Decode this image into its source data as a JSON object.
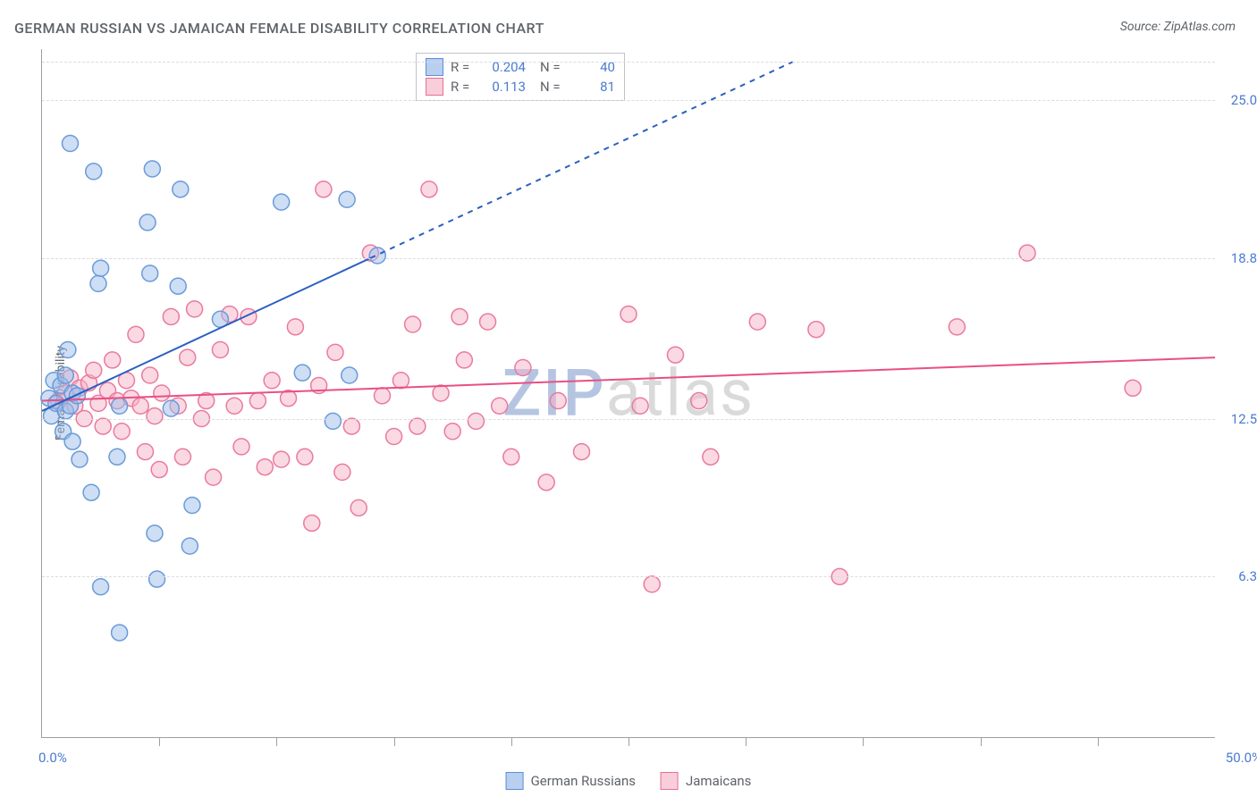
{
  "title": "GERMAN RUSSIAN VS JAMAICAN FEMALE DISABILITY CORRELATION CHART",
  "source": "Source: ZipAtlas.com",
  "watermark_zip": "ZIP",
  "watermark_atlas": "atlas",
  "ylabel": "Female Disability",
  "chart": {
    "type": "scatter",
    "xlim": [
      0,
      50
    ],
    "ylim": [
      0,
      27
    ],
    "x_tick_positions": [
      5,
      10,
      15,
      20,
      25,
      30,
      35,
      40,
      45
    ],
    "x_label_min": "0.0%",
    "x_label_max": "50.0%",
    "y_gridlines": [
      6.3,
      12.5,
      18.8,
      25.0,
      26.5
    ],
    "y_tick_labels": [
      "6.3%",
      "12.5%",
      "18.8%",
      "25.0%"
    ],
    "y_tick_values": [
      6.3,
      12.5,
      18.8,
      25.0
    ],
    "background_color": "#ffffff",
    "grid_color": "#dadce0",
    "axis_color": "#9aa0a6",
    "text_color": "#5f6368",
    "value_color": "#4a7bd0",
    "marker_radius": 9,
    "marker_stroke_width": 1.5,
    "series": [
      {
        "name": "German Russians",
        "fill": "rgba(155,190,235,0.5)",
        "stroke": "#6a9bd8",
        "r_value": "0.204",
        "n_value": "40",
        "trend": {
          "x1": 0,
          "y1": 12.8,
          "x2": 14,
          "y2": 18.8,
          "solid_until_x": 14,
          "dash_to_x": 32,
          "dash_to_y": 26.5,
          "stroke": "#2b5fc1",
          "width": 2
        },
        "points": [
          [
            0.3,
            13.3
          ],
          [
            0.4,
            12.6
          ],
          [
            0.5,
            14.0
          ],
          [
            0.6,
            13.1
          ],
          [
            0.8,
            13.8
          ],
          [
            0.9,
            12.0
          ],
          [
            1.0,
            14.2
          ],
          [
            1.0,
            12.8
          ],
          [
            1.1,
            15.2
          ],
          [
            1.2,
            13.0
          ],
          [
            1.3,
            11.6
          ],
          [
            1.3,
            13.5
          ],
          [
            1.5,
            13.4
          ],
          [
            1.2,
            23.3
          ],
          [
            2.2,
            22.2
          ],
          [
            2.4,
            17.8
          ],
          [
            2.5,
            18.4
          ],
          [
            4.5,
            20.2
          ],
          [
            4.6,
            18.2
          ],
          [
            4.7,
            22.3
          ],
          [
            5.8,
            17.7
          ],
          [
            5.9,
            21.5
          ],
          [
            7.6,
            16.4
          ],
          [
            1.6,
            10.9
          ],
          [
            2.1,
            9.6
          ],
          [
            3.2,
            11.0
          ],
          [
            3.3,
            13.0
          ],
          [
            4.8,
            8.0
          ],
          [
            4.9,
            6.2
          ],
          [
            5.5,
            12.9
          ],
          [
            6.3,
            7.5
          ],
          [
            6.4,
            9.1
          ],
          [
            3.3,
            4.1
          ],
          [
            2.5,
            5.9
          ],
          [
            10.2,
            21.0
          ],
          [
            11.1,
            14.3
          ],
          [
            13.0,
            21.1
          ],
          [
            13.1,
            14.2
          ],
          [
            12.4,
            12.4
          ],
          [
            14.3,
            18.9
          ]
        ]
      },
      {
        "name": "Jamaicans",
        "fill": "rgba(248,180,200,0.5)",
        "stroke": "#ea7aa0",
        "r_value": "0.113",
        "n_value": "81",
        "trend": {
          "x1": 0,
          "y1": 13.2,
          "x2": 50,
          "y2": 14.9,
          "stroke": "#e94f83",
          "width": 2
        },
        "points": [
          [
            0.7,
            13.2
          ],
          [
            1.0,
            13.5
          ],
          [
            1.2,
            14.1
          ],
          [
            1.4,
            13.0
          ],
          [
            1.6,
            13.7
          ],
          [
            1.8,
            12.5
          ],
          [
            2.0,
            13.9
          ],
          [
            2.2,
            14.4
          ],
          [
            2.4,
            13.1
          ],
          [
            2.6,
            12.2
          ],
          [
            2.8,
            13.6
          ],
          [
            3.0,
            14.8
          ],
          [
            3.2,
            13.2
          ],
          [
            3.4,
            12.0
          ],
          [
            3.6,
            14.0
          ],
          [
            3.8,
            13.3
          ],
          [
            4.0,
            15.8
          ],
          [
            4.2,
            13.0
          ],
          [
            4.4,
            11.2
          ],
          [
            4.6,
            14.2
          ],
          [
            4.8,
            12.6
          ],
          [
            5.0,
            10.5
          ],
          [
            5.1,
            13.5
          ],
          [
            5.5,
            16.5
          ],
          [
            5.8,
            13.0
          ],
          [
            6.0,
            11.0
          ],
          [
            6.2,
            14.9
          ],
          [
            6.5,
            16.8
          ],
          [
            6.8,
            12.5
          ],
          [
            7.0,
            13.2
          ],
          [
            7.3,
            10.2
          ],
          [
            7.6,
            15.2
          ],
          [
            8.0,
            16.6
          ],
          [
            8.2,
            13.0
          ],
          [
            8.5,
            11.4
          ],
          [
            8.8,
            16.5
          ],
          [
            9.2,
            13.2
          ],
          [
            9.5,
            10.6
          ],
          [
            9.8,
            14.0
          ],
          [
            10.2,
            10.9
          ],
          [
            10.5,
            13.3
          ],
          [
            10.8,
            16.1
          ],
          [
            11.2,
            11.0
          ],
          [
            11.5,
            8.4
          ],
          [
            11.8,
            13.8
          ],
          [
            12.0,
            21.5
          ],
          [
            12.5,
            15.1
          ],
          [
            12.8,
            10.4
          ],
          [
            13.2,
            12.2
          ],
          [
            13.5,
            9.0
          ],
          [
            14.0,
            19.0
          ],
          [
            14.5,
            13.4
          ],
          [
            15.0,
            11.8
          ],
          [
            15.3,
            14.0
          ],
          [
            15.8,
            16.2
          ],
          [
            16.0,
            12.2
          ],
          [
            16.5,
            21.5
          ],
          [
            17.0,
            13.5
          ],
          [
            17.5,
            12.0
          ],
          [
            17.8,
            16.5
          ],
          [
            18.0,
            14.8
          ],
          [
            18.5,
            12.4
          ],
          [
            19.0,
            16.3
          ],
          [
            19.5,
            13.0
          ],
          [
            20.0,
            11.0
          ],
          [
            20.5,
            14.5
          ],
          [
            21.5,
            10.0
          ],
          [
            22.0,
            13.2
          ],
          [
            23.0,
            11.2
          ],
          [
            25.0,
            16.6
          ],
          [
            25.5,
            13.0
          ],
          [
            26.0,
            6.0
          ],
          [
            27.0,
            15.0
          ],
          [
            28.0,
            13.2
          ],
          [
            28.5,
            11.0
          ],
          [
            30.5,
            16.3
          ],
          [
            33.0,
            16.0
          ],
          [
            34.0,
            6.3
          ],
          [
            39.0,
            16.1
          ],
          [
            42.0,
            19.0
          ],
          [
            46.5,
            13.7
          ]
        ]
      }
    ]
  },
  "legend_bottom": {
    "series1_label": "German Russians",
    "series2_label": "Jamaicans"
  },
  "legend_top": {
    "r_label": "R =",
    "n_label": "N ="
  }
}
